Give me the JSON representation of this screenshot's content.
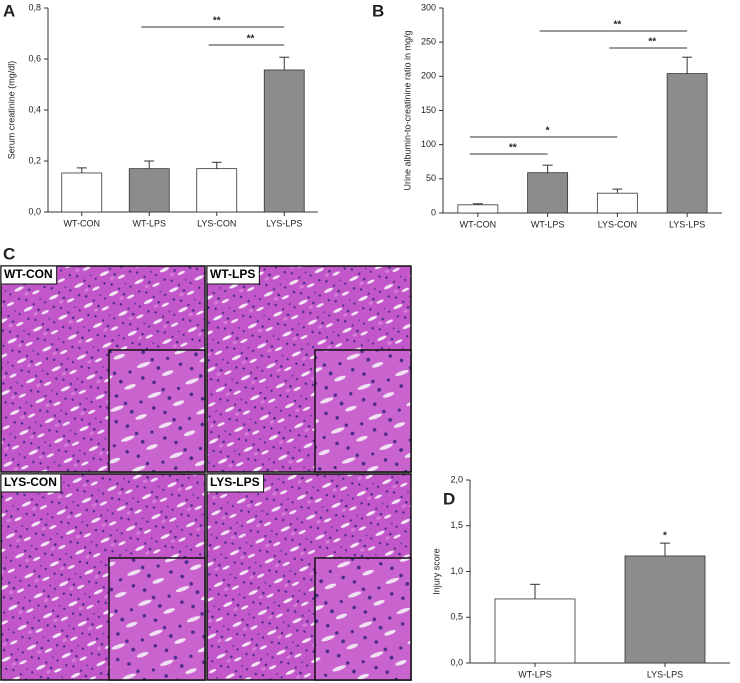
{
  "chart_data": [
    {
      "type": "bar",
      "panel": "A",
      "y_label": "Serum creatinine (mg/dl)",
      "categories": [
        "WT-CON",
        "WT-LPS",
        "LYS-CON",
        "LYS-LPS"
      ],
      "values": [
        0.153,
        0.17,
        0.17,
        0.557
      ],
      "errors": [
        0.02,
        0.03,
        0.025,
        0.05
      ],
      "colors": [
        "#ffffff",
        "#8c8c8c",
        "#ffffff",
        "#8c8c8c"
      ],
      "ylim": [
        0,
        0.8
      ],
      "yticks": [
        {
          "value": 0,
          "label": "0,0"
        },
        {
          "value": 0.2,
          "label": "0,2"
        },
        {
          "value": 0.4,
          "label": "0,4"
        },
        {
          "value": 0.6,
          "label": "0,6"
        },
        {
          "value": 0.8,
          "label": "0,8"
        }
      ],
      "annotations": [
        {
          "label": "**",
          "between": [
            "WT-LPS",
            "LYS-LPS"
          ]
        },
        {
          "label": "**",
          "between": [
            "LYS-CON",
            "LYS-LPS"
          ]
        }
      ]
    },
    {
      "type": "bar",
      "panel": "B",
      "y_label": "Urine albumin-to-creatinine ratio in mg/g",
      "categories": [
        "WT-CON",
        "WT-LPS",
        "LYS-CON",
        "LYS-LPS"
      ],
      "values": [
        12,
        59,
        29,
        204
      ],
      "errors": [
        1.5,
        11,
        6,
        24
      ],
      "colors": [
        "#ffffff",
        "#8c8c8c",
        "#ffffff",
        "#8c8c8c"
      ],
      "ylim": [
        0,
        300
      ],
      "yticks": [
        0,
        50,
        100,
        150,
        200,
        250,
        300
      ],
      "annotations": [
        {
          "label": "**",
          "between": [
            "WT-LPS",
            "LYS-LPS"
          ]
        },
        {
          "label": "**",
          "between": [
            "LYS-CON",
            "LYS-LPS"
          ]
        },
        {
          "label": "*",
          "between": [
            "WT-CON",
            "LYS-CON"
          ]
        },
        {
          "label": "**",
          "between": [
            "WT-CON",
            "WT-LPS"
          ]
        }
      ]
    },
    {
      "type": "bar",
      "panel": "D",
      "y_label": "Injury score",
      "categories": [
        "WT-LPS",
        "LYS-LPS"
      ],
      "values": [
        0.7,
        1.17
      ],
      "errors": [
        0.16,
        0.14
      ],
      "colors": [
        "#ffffff",
        "#8c8c8c"
      ],
      "ylim": [
        0,
        2
      ],
      "yticks": [
        {
          "value": 0,
          "label": "0,0"
        },
        {
          "value": 0.5,
          "label": "0,5"
        },
        {
          "value": 1,
          "label": "1,0"
        },
        {
          "value": 1.5,
          "label": "1,5"
        },
        {
          "value": 2,
          "label": "2,0"
        }
      ],
      "annotations": [
        {
          "label": "*",
          "between": [
            "LYS-LPS",
            "LYS-LPS"
          ]
        }
      ]
    }
  ],
  "histology": {
    "panel": "C",
    "images": [
      {
        "label": "WT-CON"
      },
      {
        "label": "WT-LPS"
      },
      {
        "label": "LYS-CON"
      },
      {
        "label": "LYS-LPS"
      }
    ]
  }
}
